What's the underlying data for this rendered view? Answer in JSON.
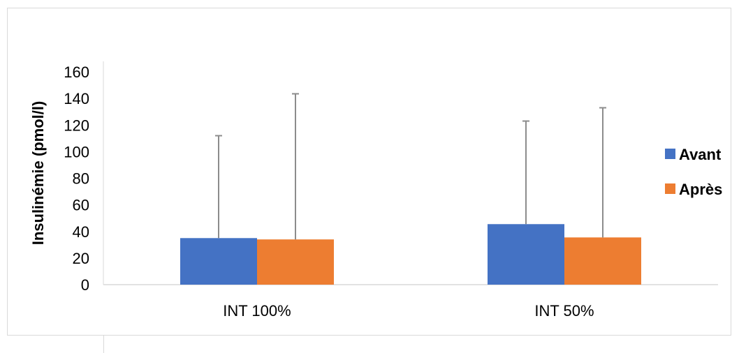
{
  "chart_data": {
    "type": "bar",
    "title": "",
    "xlabel": "",
    "ylabel": "Insulinémie (pmol/l)",
    "categories": [
      "INT 100%",
      "INT 50%"
    ],
    "series": [
      {
        "name": "Avant",
        "color": "#4472c4",
        "values": [
          35,
          45.5
        ],
        "error_upper": [
          112,
          123
        ]
      },
      {
        "name": "Après",
        "color": "#ed7d31",
        "values": [
          34,
          35.5
        ],
        "error_upper": [
          143.5,
          133
        ]
      }
    ],
    "ylim": [
      0,
      160
    ],
    "yticks": [
      0,
      20,
      40,
      60,
      80,
      100,
      120,
      140,
      160
    ],
    "grid": false,
    "legend_position": "right",
    "error_bar_color": "#8c8c8c",
    "axis_color": "#d9d9d9"
  }
}
